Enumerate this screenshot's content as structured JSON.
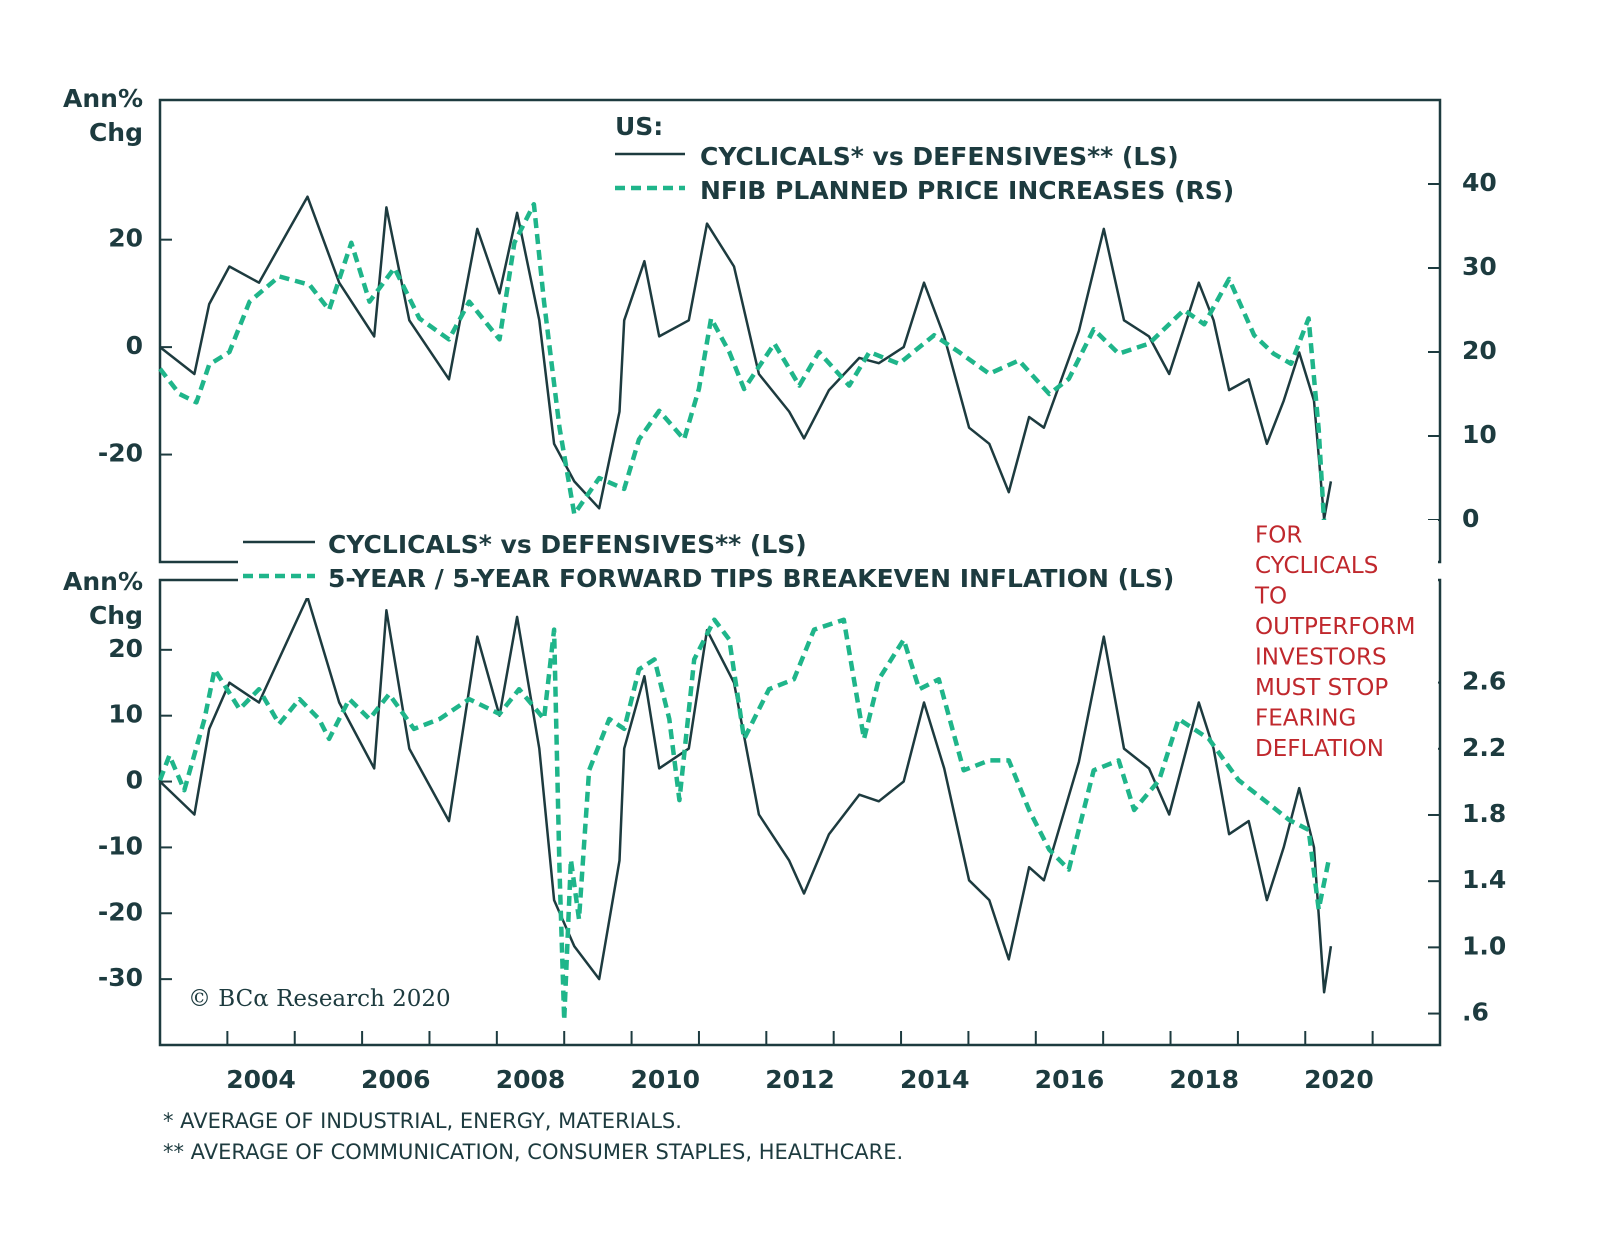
{
  "chart_data": [
    {
      "type": "line",
      "ylabel": [
        "Ann%",
        "Chg"
      ],
      "legend_title": "US:",
      "xlim": [
        2003,
        2022
      ],
      "ylim": [
        -40,
        46
      ],
      "yticks": [
        20,
        0,
        -20
      ],
      "y2lim": [
        -5,
        50
      ],
      "y2ticks": [
        40,
        30,
        20,
        10,
        0
      ],
      "series": [
        {
          "name": "CYCLICALS* vs DEFENSIVES** (LS)",
          "color": "#1d3b3f",
          "line_style": "solid",
          "axis": "y",
          "x": [
            2003.0,
            2003.51,
            2003.73,
            2004.03,
            2004.47,
            2004.92,
            2005.19,
            2005.66,
            2006.18,
            2006.36,
            2006.7,
            2007.29,
            2007.71,
            2008.04,
            2008.3,
            2008.63,
            2008.85,
            2009.15,
            2009.52,
            2009.82,
            2009.89,
            2010.19,
            2010.41,
            2010.85,
            2011.12,
            2011.52,
            2011.89,
            2012.34,
            2012.56,
            2012.93,
            2013.38,
            2013.67,
            2014.04,
            2014.34,
            2014.64,
            2015.01,
            2015.31,
            2015.6,
            2015.9,
            2016.12,
            2016.64,
            2017.01,
            2017.31,
            2017.68,
            2017.98,
            2018.42,
            2018.64,
            2018.87,
            2019.16,
            2019.43,
            2019.68,
            2019.91,
            2020.13,
            2020.28,
            2020.38
          ],
          "values": [
            0,
            -5,
            8,
            15,
            12,
            22,
            28,
            12,
            2,
            26,
            5,
            -6,
            22,
            10,
            25,
            5,
            -18,
            -25,
            -30,
            -12,
            5,
            16,
            2,
            5,
            23,
            15,
            -5,
            -12,
            -17,
            -8,
            -2,
            -3,
            0,
            12,
            2,
            -15,
            -18,
            -27,
            -13,
            -15,
            3,
            22,
            5,
            2,
            -5,
            12,
            5,
            -8,
            -6,
            -18,
            -10,
            -1,
            -10,
            -32,
            -25
          ]
        },
        {
          "name": "NFIB PLANNED PRICE INCREASES (RS)",
          "color": "#1fb58a",
          "line_style": "dashed",
          "axis": "y2",
          "x": [
            2003.0,
            2003.29,
            2003.54,
            2003.73,
            2004.03,
            2004.33,
            2004.77,
            2005.22,
            2005.51,
            2005.84,
            2006.11,
            2006.48,
            2006.85,
            2007.29,
            2007.59,
            2008.04,
            2008.26,
            2008.55,
            2008.7,
            2008.93,
            2009.15,
            2009.52,
            2009.89,
            2010.11,
            2010.41,
            2010.78,
            2011.0,
            2011.18,
            2011.45,
            2011.67,
            2012.12,
            2012.49,
            2012.78,
            2013.23,
            2013.53,
            2013.97,
            2014.49,
            2014.86,
            2015.31,
            2015.75,
            2016.2,
            2016.49,
            2016.86,
            2017.23,
            2017.68,
            2018.2,
            2018.5,
            2018.87,
            2019.24,
            2019.53,
            2019.79,
            2020.05,
            2020.2,
            2020.29
          ],
          "values": [
            18,
            15,
            14,
            18.5,
            20,
            26,
            29,
            28,
            25,
            33,
            26,
            30,
            24,
            21.5,
            26,
            21.5,
            33,
            37.6,
            26,
            11,
            0.7,
            5,
            3.7,
            9.6,
            13,
            9.6,
            15.6,
            24,
            20,
            15.6,
            21,
            16,
            20,
            16,
            20,
            18.6,
            22,
            20,
            17.4,
            19,
            15,
            16.8,
            22.7,
            19.8,
            21,
            25,
            23.3,
            28.7,
            22,
            19.8,
            18.6,
            24,
            10.8,
            -1.7
          ]
        }
      ]
    },
    {
      "type": "line",
      "ylabel": [
        "Ann%",
        "Chg"
      ],
      "xlim": [
        2003,
        2022
      ],
      "xticks": [
        {
          "value": 2004.5,
          "label": "2004"
        },
        {
          "value": 2006.5,
          "label": "2006"
        },
        {
          "value": 2008.5,
          "label": "2008"
        },
        {
          "value": 2010.5,
          "label": "2010"
        },
        {
          "value": 2012.5,
          "label": "2012"
        },
        {
          "value": 2014.5,
          "label": "2014"
        },
        {
          "value": 2016.5,
          "label": "2016"
        },
        {
          "value": 2018.5,
          "label": "2018"
        },
        {
          "value": 2020.5,
          "label": "2020"
        }
      ],
      "ylim": [
        -40,
        30.6
      ],
      "yticks": [
        20,
        10,
        0,
        -10,
        -20,
        -30
      ],
      "y2lim": [
        0.41,
        3.22
      ],
      "y2ticks": [
        2.6,
        2.2,
        1.8,
        1.4,
        {
          "value": 1,
          "label": "1.0"
        },
        {
          "value": 0.6,
          "label": ".6"
        }
      ],
      "annotation": [
        "FOR",
        "CYCLICALS",
        "TO",
        "OUTPERFORM",
        "INVESTORS",
        "MUST STOP",
        "FEARING",
        "DEFLATION"
      ],
      "source": "© BCα Research 2020",
      "series": [
        {
          "name": "CYCLICALS* vs DEFENSIVES** (LS)",
          "color": "#1d3b3f",
          "line_style": "solid",
          "axis": "y",
          "x": [
            2003.0,
            2003.51,
            2003.73,
            2004.03,
            2004.47,
            2004.92,
            2005.19,
            2005.66,
            2006.18,
            2006.36,
            2006.7,
            2007.29,
            2007.71,
            2008.04,
            2008.3,
            2008.63,
            2008.85,
            2009.15,
            2009.52,
            2009.82,
            2009.89,
            2010.19,
            2010.41,
            2010.85,
            2011.12,
            2011.52,
            2011.89,
            2012.34,
            2012.56,
            2012.93,
            2013.38,
            2013.67,
            2014.04,
            2014.34,
            2014.64,
            2015.01,
            2015.31,
            2015.6,
            2015.9,
            2016.12,
            2016.64,
            2017.01,
            2017.31,
            2017.68,
            2017.98,
            2018.42,
            2018.64,
            2018.87,
            2019.16,
            2019.43,
            2019.68,
            2019.91,
            2020.13,
            2020.28,
            2020.38
          ],
          "values": [
            0,
            -5,
            8,
            15,
            12,
            22,
            28,
            12,
            2,
            26,
            5,
            -6,
            22,
            10,
            25,
            5,
            -18,
            -25,
            -30,
            -12,
            5,
            16,
            2,
            5,
            23,
            15,
            -5,
            -12,
            -17,
            -8,
            -2,
            -3,
            0,
            12,
            2,
            -15,
            -18,
            -27,
            -13,
            -15,
            3,
            22,
            5,
            2,
            -5,
            12,
            5,
            -8,
            -6,
            -18,
            -10,
            -1,
            -10,
            -32,
            -25
          ]
        },
        {
          "name": "5-YEAR / 5-YEAR FORWARD TIPS BREAKEVEN INFLATION (LS)",
          "color": "#1fb58a",
          "line_style": "dashed",
          "axis": "y2",
          "x": [
            2003.0,
            2003.14,
            2003.36,
            2003.66,
            2003.81,
            2004.18,
            2004.47,
            2004.77,
            2005.07,
            2005.36,
            2005.51,
            2005.81,
            2006.11,
            2006.4,
            2006.77,
            2007.15,
            2007.59,
            2008.04,
            2008.33,
            2008.7,
            2008.85,
            2008.93,
            2009.0,
            2009.1,
            2009.22,
            2009.37,
            2009.67,
            2009.89,
            2010.11,
            2010.34,
            2010.56,
            2010.71,
            2010.93,
            2011.23,
            2011.45,
            2011.67,
            2012.04,
            2012.41,
            2012.71,
            2013.15,
            2013.45,
            2013.67,
            2014.04,
            2014.27,
            2014.56,
            2014.93,
            2015.31,
            2015.6,
            2015.9,
            2016.2,
            2016.49,
            2016.86,
            2017.23,
            2017.46,
            2017.83,
            2018.12,
            2018.57,
            2019.01,
            2019.39,
            2019.76,
            2020.05,
            2020.2,
            2020.35
          ],
          "values": [
            2.01,
            2.16,
            1.95,
            2.38,
            2.68,
            2.44,
            2.56,
            2.35,
            2.5,
            2.38,
            2.26,
            2.5,
            2.38,
            2.53,
            2.32,
            2.38,
            2.5,
            2.41,
            2.56,
            2.38,
            2.92,
            1.47,
            0.56,
            1.53,
            1.17,
            2.07,
            2.38,
            2.32,
            2.68,
            2.74,
            2.38,
            1.89,
            2.74,
            2.98,
            2.86,
            2.26,
            2.56,
            2.62,
            2.92,
            2.98,
            2.26,
            2.62,
            2.86,
            2.56,
            2.62,
            2.07,
            2.13,
            2.13,
            1.83,
            1.59,
            1.47,
            2.07,
            2.13,
            1.83,
            2.01,
            2.38,
            2.26,
            2.01,
            1.89,
            1.77,
            1.71,
            1.23,
            1.53
          ]
        }
      ]
    }
  ],
  "footnotes": [
    "*   AVERAGE OF INDUSTRIAL, ENERGY, MATERIALS.",
    "**  AVERAGE OF COMMUNICATION, CONSUMER STAPLES, HEALTHCARE."
  ]
}
